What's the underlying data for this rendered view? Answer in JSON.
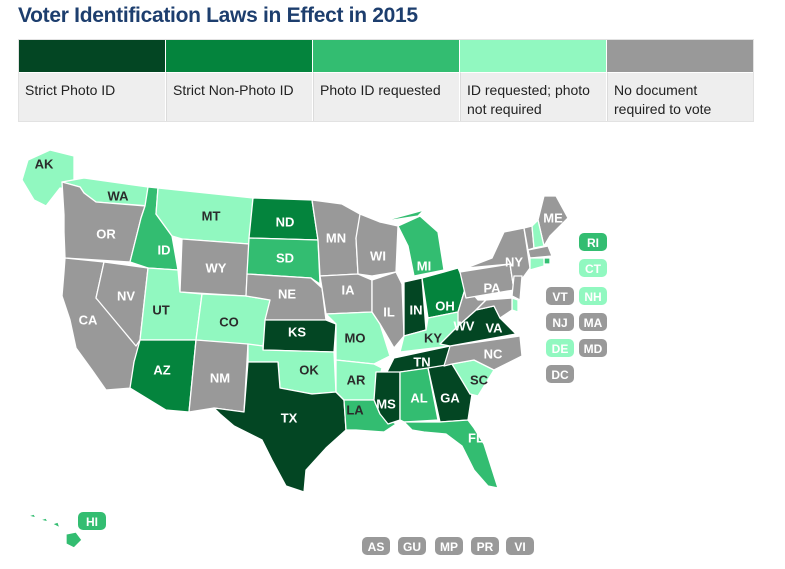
{
  "title": "Voter Identification Laws in Effect in 2015",
  "colors": {
    "strict_photo": "#034623",
    "strict_nonphoto": "#04843d",
    "photo_requested": "#33bd71",
    "id_requested": "#91f8c0",
    "no_doc": "#999999"
  },
  "legend": [
    {
      "key": "strict_photo",
      "label": "Strict Photo ID"
    },
    {
      "key": "strict_nonphoto",
      "label": "Strict Non-Photo ID"
    },
    {
      "key": "photo_requested",
      "label": "Photo ID requested"
    },
    {
      "key": "id_requested",
      "label": "ID requested; photo not required"
    },
    {
      "key": "no_doc",
      "label": "No document required to vote"
    }
  ],
  "states": [
    {
      "abbr": "AK",
      "cat": "id_requested"
    },
    {
      "abbr": "HI",
      "cat": "photo_requested"
    },
    {
      "abbr": "WA",
      "cat": "id_requested"
    },
    {
      "abbr": "OR",
      "cat": "no_doc"
    },
    {
      "abbr": "CA",
      "cat": "no_doc"
    },
    {
      "abbr": "ID",
      "cat": "photo_requested"
    },
    {
      "abbr": "NV",
      "cat": "no_doc"
    },
    {
      "abbr": "MT",
      "cat": "id_requested"
    },
    {
      "abbr": "WY",
      "cat": "no_doc"
    },
    {
      "abbr": "UT",
      "cat": "id_requested"
    },
    {
      "abbr": "AZ",
      "cat": "strict_nonphoto"
    },
    {
      "abbr": "CO",
      "cat": "id_requested"
    },
    {
      "abbr": "NM",
      "cat": "no_doc"
    },
    {
      "abbr": "ND",
      "cat": "strict_nonphoto"
    },
    {
      "abbr": "SD",
      "cat": "photo_requested"
    },
    {
      "abbr": "NE",
      "cat": "no_doc"
    },
    {
      "abbr": "KS",
      "cat": "strict_photo"
    },
    {
      "abbr": "OK",
      "cat": "id_requested"
    },
    {
      "abbr": "TX",
      "cat": "strict_photo"
    },
    {
      "abbr": "MN",
      "cat": "no_doc"
    },
    {
      "abbr": "IA",
      "cat": "no_doc"
    },
    {
      "abbr": "MO",
      "cat": "id_requested"
    },
    {
      "abbr": "AR",
      "cat": "id_requested"
    },
    {
      "abbr": "LA",
      "cat": "photo_requested"
    },
    {
      "abbr": "WI",
      "cat": "no_doc"
    },
    {
      "abbr": "IL",
      "cat": "no_doc"
    },
    {
      "abbr": "MI",
      "cat": "photo_requested"
    },
    {
      "abbr": "IN",
      "cat": "strict_photo"
    },
    {
      "abbr": "OH",
      "cat": "strict_nonphoto"
    },
    {
      "abbr": "KY",
      "cat": "id_requested"
    },
    {
      "abbr": "TN",
      "cat": "strict_photo"
    },
    {
      "abbr": "MS",
      "cat": "strict_photo"
    },
    {
      "abbr": "AL",
      "cat": "photo_requested"
    },
    {
      "abbr": "GA",
      "cat": "strict_photo"
    },
    {
      "abbr": "FL",
      "cat": "photo_requested"
    },
    {
      "abbr": "SC",
      "cat": "id_requested"
    },
    {
      "abbr": "NC",
      "cat": "no_doc"
    },
    {
      "abbr": "VA",
      "cat": "strict_photo"
    },
    {
      "abbr": "WV",
      "cat": "no_doc"
    },
    {
      "abbr": "PA",
      "cat": "no_doc"
    },
    {
      "abbr": "NY",
      "cat": "no_doc"
    },
    {
      "abbr": "ME",
      "cat": "no_doc"
    },
    {
      "abbr": "VT",
      "cat": "no_doc"
    },
    {
      "abbr": "NH",
      "cat": "id_requested"
    },
    {
      "abbr": "MA",
      "cat": "no_doc"
    },
    {
      "abbr": "RI",
      "cat": "photo_requested"
    },
    {
      "abbr": "CT",
      "cat": "id_requested"
    },
    {
      "abbr": "NJ",
      "cat": "no_doc"
    },
    {
      "abbr": "DE",
      "cat": "id_requested"
    },
    {
      "abbr": "MD",
      "cat": "no_doc"
    },
    {
      "abbr": "DC",
      "cat": "no_doc"
    }
  ],
  "territories": [
    "AS",
    "GU",
    "MP",
    "PR",
    "VI"
  ]
}
